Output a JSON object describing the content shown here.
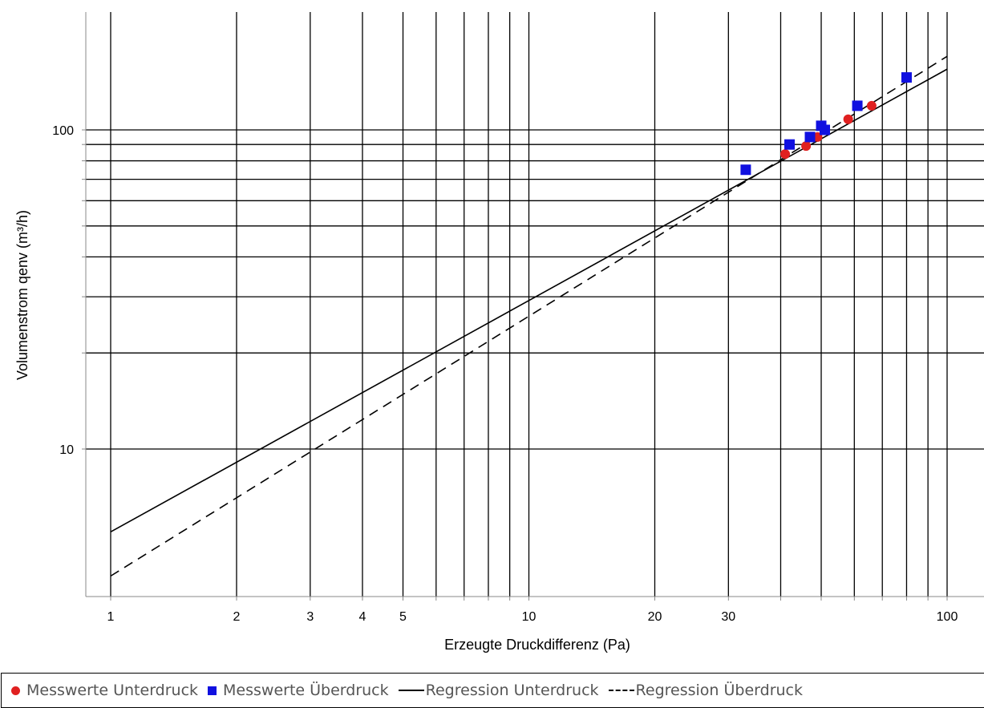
{
  "chart_data": {
    "type": "scatter",
    "title": "",
    "xlabel": "Erzeugte Druckdifferenz (Pa)",
    "ylabel": "Volumenstrom qenv (m³/h)",
    "x_scale": "log",
    "y_scale": "log",
    "xlim": [
      0.94,
      105
    ],
    "ylim": [
      3.6,
      225
    ],
    "grid": true,
    "legend_position": "bottom",
    "x_ticks": [
      1,
      2,
      3,
      4,
      5,
      10,
      20,
      30,
      100
    ],
    "x_tick_labels": [
      "1",
      "2",
      "3",
      "4",
      "5",
      "10",
      "20",
      "30",
      "100"
    ],
    "x_gridlines": [
      1,
      2,
      3,
      4,
      5,
      6,
      7,
      8,
      9,
      10,
      20,
      30,
      40,
      50,
      60,
      70,
      80,
      90,
      100
    ],
    "y_ticks": [
      10,
      100
    ],
    "y_tick_labels": [
      "10",
      "100"
    ],
    "y_gridlines": [
      10,
      20,
      30,
      40,
      50,
      60,
      70,
      80,
      90,
      100
    ],
    "series": [
      {
        "name": "Messwerte Unterdruck",
        "kind": "points",
        "marker": "circle",
        "color": "#e02020",
        "points": [
          [
            41,
            84
          ],
          [
            46,
            89
          ],
          [
            49,
            95
          ],
          [
            58,
            108
          ],
          [
            66,
            119
          ]
        ]
      },
      {
        "name": "Messwerte Überdruck",
        "kind": "points",
        "marker": "square",
        "color": "#1010e0",
        "points": [
          [
            33,
            75
          ],
          [
            42,
            90
          ],
          [
            47,
            95
          ],
          [
            50,
            103
          ],
          [
            51,
            100
          ],
          [
            61,
            119
          ],
          [
            80,
            146
          ]
        ]
      },
      {
        "name": "Regression Unterdruck",
        "kind": "line",
        "style": "solid",
        "color": "#000000",
        "points": [
          [
            1,
            5.5
          ],
          [
            100,
            155
          ]
        ]
      },
      {
        "name": "Regression Überdruck",
        "kind": "line",
        "style": "dashed",
        "color": "#000000",
        "points": [
          [
            1,
            4.0
          ],
          [
            100,
            170
          ]
        ]
      }
    ]
  }
}
